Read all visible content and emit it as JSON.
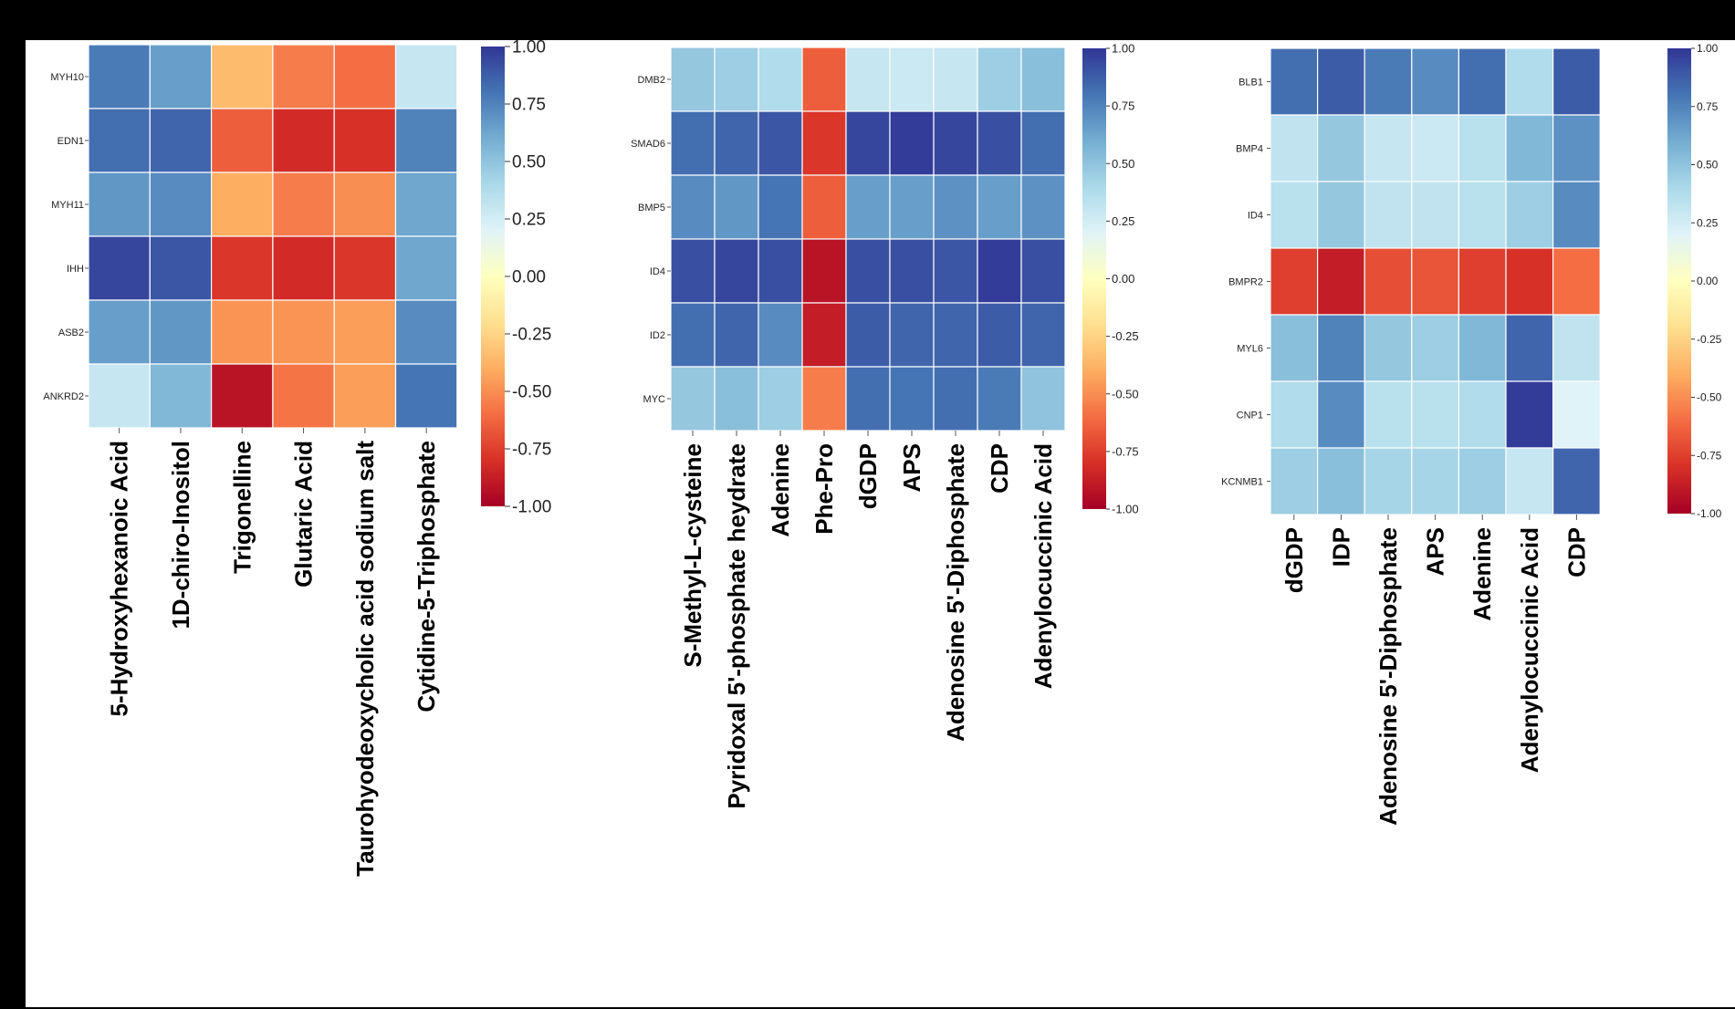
{
  "chart_data": [
    {
      "type": "heatmap",
      "title": "",
      "rows": [
        "MYH10",
        "EDN1",
        "MYH11",
        "IHH",
        "ASB2",
        "ANKRD2"
      ],
      "columns": [
        "5-Hydroxyhexanoic Acid",
        "1D-chiro-Inositol",
        "Trigonelline",
        "Glutaric Acid",
        "Taurohyodeoxycholic acid sodium salt",
        "Cytidine-5-Triphosphate"
      ],
      "values": [
        [
          0.78,
          0.65,
          -0.35,
          -0.55,
          -0.6,
          0.3
        ],
        [
          0.82,
          0.85,
          -0.65,
          -0.82,
          -0.8,
          0.75
        ],
        [
          0.68,
          0.72,
          -0.4,
          -0.55,
          -0.5,
          0.62
        ],
        [
          0.95,
          0.9,
          -0.78,
          -0.82,
          -0.78,
          0.62
        ],
        [
          0.65,
          0.68,
          -0.48,
          -0.48,
          -0.45,
          0.72
        ],
        [
          0.3,
          0.55,
          -0.92,
          -0.58,
          -0.45,
          0.8
        ]
      ],
      "colorbar": {
        "min": -1.0,
        "max": 1.0,
        "ticks": [
          "1.00",
          "0.75",
          "0.50",
          "0.25",
          "0.00",
          "-0.25",
          "-0.50",
          "-0.75",
          "-1.00"
        ]
      }
    },
    {
      "type": "heatmap",
      "title": "",
      "rows": [
        "DMB2",
        "SMAD6",
        "BMP5",
        "ID4",
        "ID2",
        "MYC"
      ],
      "columns": [
        "S-Methyl-L-cysteine",
        "Pyridoxal 5'-phosphate heydrate",
        "Adenine",
        "Phe-Pro",
        "dGDP",
        "APS",
        "Adenosine 5'-Diphosphate",
        "CDP",
        "Adenylocuccinic Acid"
      ],
      "values": [
        [
          0.48,
          0.45,
          0.38,
          -0.65,
          0.3,
          0.28,
          0.3,
          0.45,
          0.52
        ],
        [
          0.82,
          0.85,
          0.9,
          -0.78,
          0.95,
          0.98,
          0.95,
          0.92,
          0.82
        ],
        [
          0.72,
          0.68,
          0.8,
          -0.65,
          0.65,
          0.65,
          0.7,
          0.65,
          0.7
        ],
        [
          0.92,
          0.95,
          0.92,
          -0.92,
          0.92,
          0.92,
          0.9,
          0.98,
          0.92
        ],
        [
          0.82,
          0.85,
          0.72,
          -0.88,
          0.88,
          0.85,
          0.85,
          0.88,
          0.85
        ],
        [
          0.48,
          0.52,
          0.45,
          -0.55,
          0.82,
          0.8,
          0.82,
          0.78,
          0.5
        ]
      ],
      "colorbar": {
        "min": -1.0,
        "max": 1.0,
        "ticks": [
          "1.00",
          "0.75",
          "0.50",
          "0.25",
          "0.00",
          "-0.25",
          "-0.50",
          "-0.75",
          "-1.00"
        ]
      }
    },
    {
      "type": "heatmap",
      "title": "",
      "rows": [
        "BLB1",
        "BMP4",
        "ID4",
        "BMPR2",
        "MYL6",
        "CNP1",
        "KCNMB1"
      ],
      "columns": [
        "dGDP",
        "IDP",
        "Adenosine 5'-Diphosphate",
        "APS",
        "Adenine",
        "Adenylocuccinic Acid",
        "CDP"
      ],
      "values": [
        [
          0.82,
          0.88,
          0.78,
          0.72,
          0.82,
          0.38,
          0.88
        ],
        [
          0.32,
          0.48,
          0.3,
          0.28,
          0.35,
          0.55,
          0.7
        ],
        [
          0.35,
          0.48,
          0.32,
          0.32,
          0.35,
          0.45,
          0.72
        ],
        [
          -0.75,
          -0.88,
          -0.7,
          -0.68,
          -0.75,
          -0.8,
          -0.6
        ],
        [
          0.52,
          0.75,
          0.48,
          0.45,
          0.55,
          0.85,
          0.32
        ],
        [
          0.38,
          0.72,
          0.35,
          0.35,
          0.38,
          0.98,
          0.2
        ],
        [
          0.45,
          0.52,
          0.42,
          0.42,
          0.45,
          0.3,
          0.85
        ]
      ],
      "colorbar": {
        "min": -1.0,
        "max": 1.0,
        "ticks": [
          "1.00",
          "0.75",
          "0.50",
          "0.25",
          "0.00",
          "-0.25",
          "-0.50",
          "-0.75",
          "-1.00"
        ]
      }
    }
  ]
}
